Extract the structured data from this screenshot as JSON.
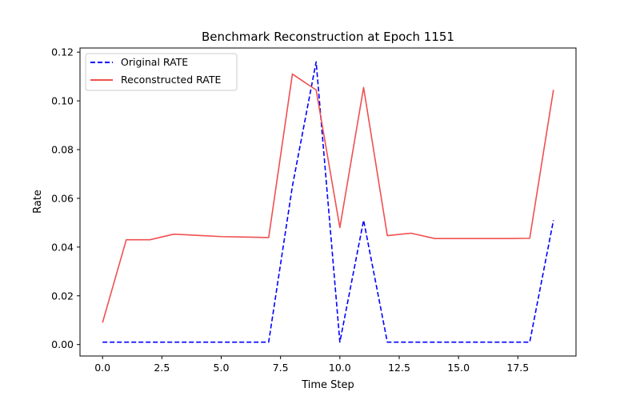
{
  "chart_data": {
    "type": "line",
    "title": "Benchmark Reconstruction at Epoch 1151",
    "xlabel": "Time Step",
    "ylabel": "Rate",
    "xlim": [
      -0.95,
      19.95
    ],
    "ylim": [
      -0.0047,
      0.1217
    ],
    "xticks": [
      0.0,
      2.5,
      5.0,
      7.5,
      10.0,
      12.5,
      15.0,
      17.5
    ],
    "xtick_labels": [
      "0.0",
      "2.5",
      "5.0",
      "7.5",
      "10.0",
      "12.5",
      "15.0",
      "17.5"
    ],
    "yticks": [
      0.0,
      0.02,
      0.04,
      0.06,
      0.08,
      0.1,
      0.12
    ],
    "ytick_labels": [
      "0.00",
      "0.02",
      "0.04",
      "0.06",
      "0.08",
      "0.10",
      "0.12"
    ],
    "grid": false,
    "legend": "top-left",
    "x": [
      0,
      1,
      2,
      3,
      4,
      5,
      6,
      7,
      8,
      9,
      10,
      11,
      12,
      13,
      14,
      15,
      16,
      17,
      18,
      19
    ],
    "series": [
      {
        "name": "Original RATE",
        "color": "#0000ff",
        "style": "dashed",
        "values": [
          0.001,
          0.001,
          0.001,
          0.001,
          0.001,
          0.001,
          0.001,
          0.001,
          0.065,
          0.116,
          0.001,
          0.051,
          0.001,
          0.001,
          0.001,
          0.001,
          0.001,
          0.001,
          0.001,
          0.051
        ]
      },
      {
        "name": "Reconstructed RATE",
        "color": "#f05050",
        "style": "solid",
        "values": [
          0.009,
          0.043,
          0.043,
          0.0453,
          0.0448,
          0.0443,
          0.0441,
          0.0439,
          0.111,
          0.1045,
          0.048,
          0.1055,
          0.0447,
          0.0457,
          0.0435,
          0.0435,
          0.0435,
          0.0435,
          0.0436,
          0.1045
        ]
      }
    ]
  }
}
